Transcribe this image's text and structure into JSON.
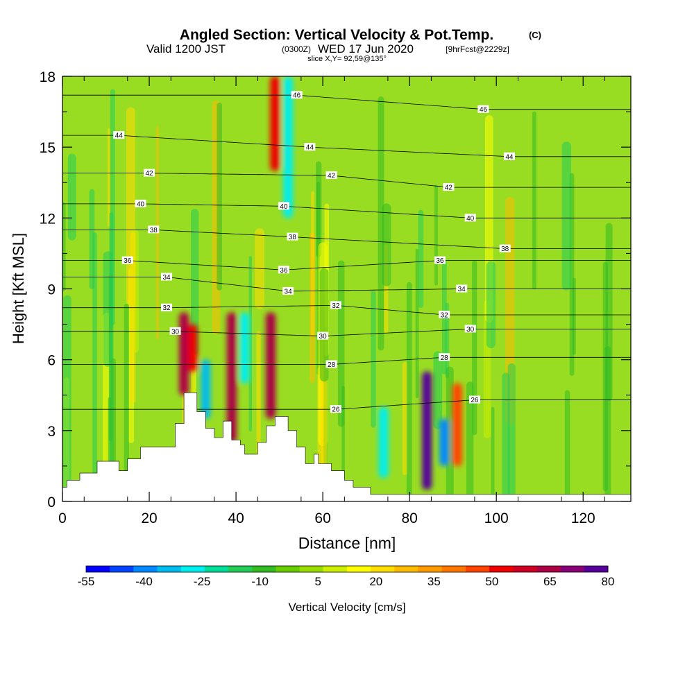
{
  "chart_data": {
    "type": "heatmap",
    "title": "Angled Section: Vertical Velocity & Pot.Temp.",
    "title_unit": "(C)",
    "subtitle": {
      "valid": "Valid 1200 JST",
      "zulu": "(0300Z)",
      "date": "WED 17 Jun 2020",
      "forecast": "[9hrFcst@2229z]"
    },
    "slice_label": "slice X,Y= 92,59@135°",
    "xlabel": "Distance [nm]",
    "ylabel": "Height [Kft MSL]",
    "xlim": [
      0,
      131
    ],
    "ylim": [
      0,
      18
    ],
    "x_ticks": [
      "0",
      "20",
      "40",
      "60",
      "80",
      "100",
      "120"
    ],
    "y_ticks": [
      "0",
      "3",
      "6",
      "9",
      "12",
      "15",
      "18"
    ],
    "colorbar": {
      "label": "Vertical Velocity [cm/s]",
      "tick_labels": [
        "-55",
        "-40",
        "-25",
        "-10",
        "5",
        "20",
        "35",
        "50",
        "65",
        "80"
      ],
      "colors": [
        "#0000ff",
        "#0044ff",
        "#0088ff",
        "#00bbee",
        "#00eeee",
        "#00dd99",
        "#22cc55",
        "#33bb22",
        "#66cc00",
        "#99dd00",
        "#ccee00",
        "#ffff00",
        "#ffdd00",
        "#ffbb00",
        "#ff9900",
        "#ff7700",
        "#ff4400",
        "#ee0000",
        "#cc0022",
        "#aa0044",
        "#880077",
        "#550099"
      ]
    },
    "vertical_velocity_cells": [
      {
        "x": 28,
        "h_low": 4.5,
        "h_high": 8,
        "value": 70
      },
      {
        "x": 30,
        "h_low": 5.5,
        "h_high": 7.5,
        "value": 55
      },
      {
        "x": 33,
        "h_low": 3.5,
        "h_high": 6,
        "value": -35
      },
      {
        "x": 39,
        "h_low": 2.5,
        "h_high": 8,
        "value": 65
      },
      {
        "x": 42,
        "h_low": 5,
        "h_high": 8,
        "value": -30
      },
      {
        "x": 48,
        "h_low": 3.5,
        "h_high": 8,
        "value": 70
      },
      {
        "x": 49,
        "h_low": 14,
        "h_high": 18,
        "value": 55
      },
      {
        "x": 52,
        "h_low": 12,
        "h_high": 18,
        "value": -30
      },
      {
        "x": 74,
        "h_low": 1,
        "h_high": 4,
        "value": -30
      },
      {
        "x": 84,
        "h_low": 0.5,
        "h_high": 5.5,
        "value": 80
      },
      {
        "x": 88,
        "h_low": 1.5,
        "h_high": 3.5,
        "value": -40
      },
      {
        "x": 91,
        "h_low": 1.5,
        "h_high": 5,
        "value": 45
      }
    ],
    "isentropes": [
      {
        "label": "26",
        "label_x": 63,
        "label_h": 3.9
      },
      {
        "label": "26",
        "label_x": 95,
        "label_h": 4.3
      },
      {
        "label": "28",
        "label_x": 62,
        "label_h": 5.8
      },
      {
        "label": "28",
        "label_x": 88,
        "label_h": 6.1
      },
      {
        "label": "30",
        "label_x": 26,
        "label_h": 7.2
      },
      {
        "label": "30",
        "label_x": 60,
        "label_h": 7.0
      },
      {
        "label": "30",
        "label_x": 94,
        "label_h": 7.3
      },
      {
        "label": "32",
        "label_x": 24,
        "label_h": 8.2
      },
      {
        "label": "32",
        "label_x": 63,
        "label_h": 8.3
      },
      {
        "label": "32",
        "label_x": 88,
        "label_h": 7.9
      },
      {
        "label": "34",
        "label_x": 24,
        "label_h": 9.5
      },
      {
        "label": "34",
        "label_x": 52,
        "label_h": 8.9
      },
      {
        "label": "34",
        "label_x": 92,
        "label_h": 9.0
      },
      {
        "label": "36",
        "label_x": 15,
        "label_h": 10.2
      },
      {
        "label": "36",
        "label_x": 51,
        "label_h": 9.8
      },
      {
        "label": "36",
        "label_x": 87,
        "label_h": 10.2
      },
      {
        "label": "38",
        "label_x": 21,
        "label_h": 11.5
      },
      {
        "label": "38",
        "label_x": 53,
        "label_h": 11.2
      },
      {
        "label": "38",
        "label_x": 102,
        "label_h": 10.7
      },
      {
        "label": "40",
        "label_x": 18,
        "label_h": 12.6
      },
      {
        "label": "40",
        "label_x": 51,
        "label_h": 12.5
      },
      {
        "label": "40",
        "label_x": 94,
        "label_h": 12.0
      },
      {
        "label": "42",
        "label_x": 20,
        "label_h": 13.9
      },
      {
        "label": "42",
        "label_x": 62,
        "label_h": 13.8
      },
      {
        "label": "42",
        "label_x": 89,
        "label_h": 13.3
      },
      {
        "label": "44",
        "label_x": 13,
        "label_h": 15.5
      },
      {
        "label": "44",
        "label_x": 57,
        "label_h": 15.0
      },
      {
        "label": "44",
        "label_x": 103,
        "label_h": 14.6
      },
      {
        "label": "46",
        "label_x": 54,
        "label_h": 17.2
      },
      {
        "label": "46",
        "label_x": 97,
        "label_h": 16.6
      }
    ],
    "terrain": [
      [
        0,
        0.6
      ],
      [
        1,
        0.6
      ],
      [
        1,
        0.9
      ],
      [
        4,
        0.9
      ],
      [
        4,
        1.2
      ],
      [
        8,
        1.2
      ],
      [
        8,
        1.7
      ],
      [
        13,
        1.7
      ],
      [
        13,
        1.3
      ],
      [
        15,
        1.3
      ],
      [
        15,
        1.8
      ],
      [
        18,
        1.8
      ],
      [
        18,
        2.3
      ],
      [
        26,
        2.3
      ],
      [
        26,
        3.3
      ],
      [
        28,
        3.3
      ],
      [
        28,
        4.6
      ],
      [
        31,
        4.6
      ],
      [
        31,
        3.8
      ],
      [
        33,
        3.8
      ],
      [
        33,
        3.1
      ],
      [
        35,
        3.1
      ],
      [
        35,
        2.7
      ],
      [
        37,
        2.7
      ],
      [
        37,
        3.4
      ],
      [
        39,
        3.4
      ],
      [
        39,
        2.6
      ],
      [
        41,
        2.6
      ],
      [
        41,
        2.4
      ],
      [
        42,
        2.4
      ],
      [
        42,
        2.0
      ],
      [
        45,
        2.0
      ],
      [
        45,
        2.5
      ],
      [
        47,
        2.5
      ],
      [
        47,
        3.2
      ],
      [
        49,
        3.2
      ],
      [
        49,
        3.6
      ],
      [
        52,
        3.6
      ],
      [
        52,
        3.0
      ],
      [
        54,
        3.0
      ],
      [
        54,
        2.3
      ],
      [
        56,
        2.3
      ],
      [
        56,
        1.6
      ],
      [
        58,
        1.6
      ],
      [
        58,
        2.0
      ],
      [
        59,
        2.0
      ],
      [
        59,
        1.6
      ],
      [
        62,
        1.6
      ],
      [
        62,
        1.3
      ],
      [
        65,
        1.3
      ],
      [
        65,
        0.9
      ],
      [
        67,
        0.9
      ],
      [
        67,
        0.6
      ],
      [
        71,
        0.6
      ],
      [
        71,
        0.3
      ],
      [
        131,
        0.3
      ]
    ]
  }
}
